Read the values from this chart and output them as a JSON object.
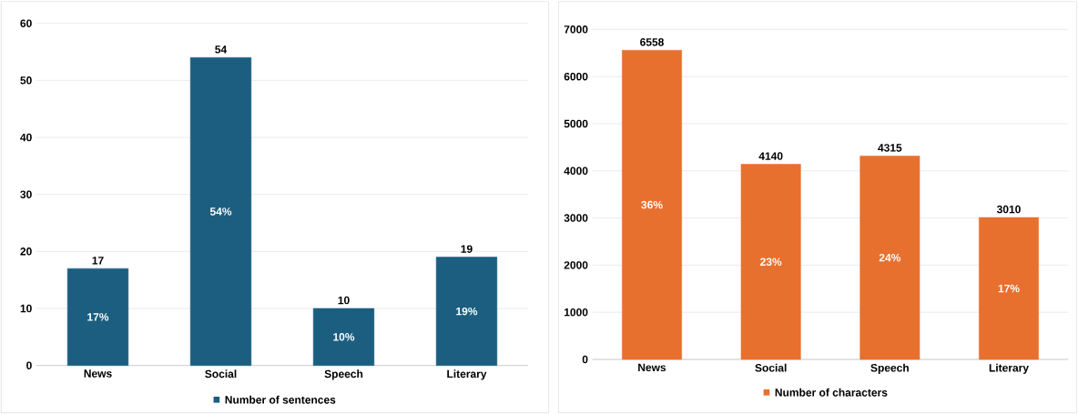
{
  "chart_data": [
    {
      "type": "bar",
      "categories": [
        "News",
        "Social",
        "Speech",
        "Literary"
      ],
      "series": [
        {
          "name": "Number of sentences",
          "color": "#1b5e80",
          "values": [
            17,
            54,
            10,
            19
          ]
        }
      ],
      "ylim": [
        0,
        60
      ],
      "yticks": [
        0,
        10,
        20,
        30,
        40,
        50,
        60
      ],
      "grid": "y",
      "legend": "bottom",
      "data_labels": true,
      "annotations": [
        "17%",
        "54%",
        "10%",
        "19%"
      ]
    },
    {
      "type": "bar",
      "categories": [
        "News",
        "Social",
        "Speech",
        "Literary"
      ],
      "series": [
        {
          "name": "Number of characters",
          "color": "#e8702e",
          "values": [
            6558,
            4140,
            4315,
            3010
          ]
        }
      ],
      "ylim": [
        0,
        7000
      ],
      "yticks": [
        0,
        1000,
        2000,
        3000,
        4000,
        5000,
        6000,
        7000
      ],
      "grid": "y",
      "legend": "bottom",
      "data_labels": true,
      "annotations": [
        "36%",
        "23%",
        "24%",
        "17%"
      ]
    }
  ]
}
